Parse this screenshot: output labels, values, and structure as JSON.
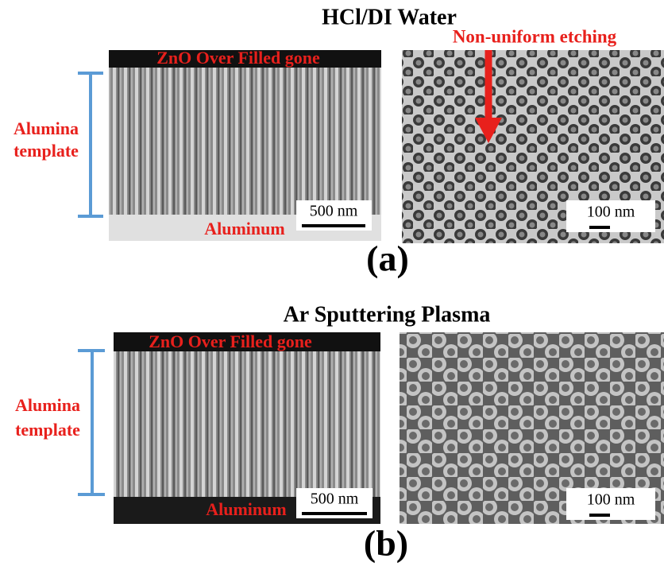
{
  "panels": [
    {
      "title": "HCl/DI Water",
      "label": "(a)",
      "bracket_label": [
        "Alumina",
        "template"
      ],
      "top_text": "ZnO  Over Filled gone",
      "bottom_text": "Aluminum",
      "left_scale": "500 nm",
      "right_scale": "100 nm",
      "annotation": "Non-uniform etching"
    },
    {
      "title": "Ar Sputtering Plasma",
      "label": "(b)",
      "bracket_label": [
        "Alumina",
        "template"
      ],
      "top_text": "ZnO  Over Filled gone",
      "bottom_text": "Aluminum",
      "left_scale": "500 nm",
      "right_scale": "100 nm"
    }
  ]
}
